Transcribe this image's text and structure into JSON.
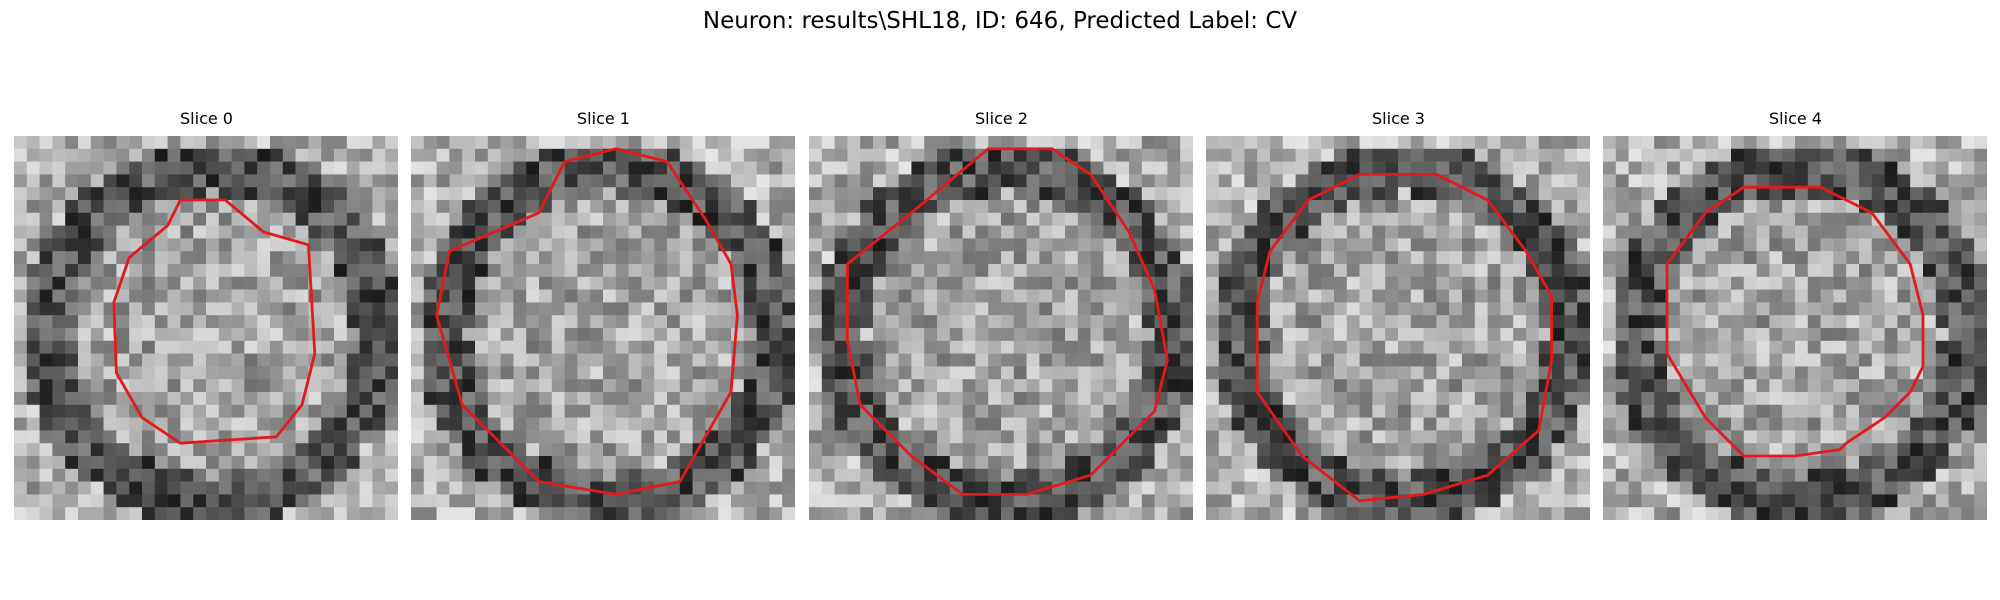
{
  "figure": {
    "title": "Neuron: results\\SHL18, ID: 646, Predicted Label: CV"
  },
  "panels": [
    {
      "title": "Slice 0",
      "contour_color": "#e31a1c"
    },
    {
      "title": "Slice 1",
      "contour_color": "#e31a1c"
    },
    {
      "title": "Slice 2",
      "contour_color": "#e31a1c"
    },
    {
      "title": "Slice 3",
      "contour_color": "#e31a1c"
    },
    {
      "title": "Slice 4",
      "contour_color": "#e31a1c"
    }
  ]
}
